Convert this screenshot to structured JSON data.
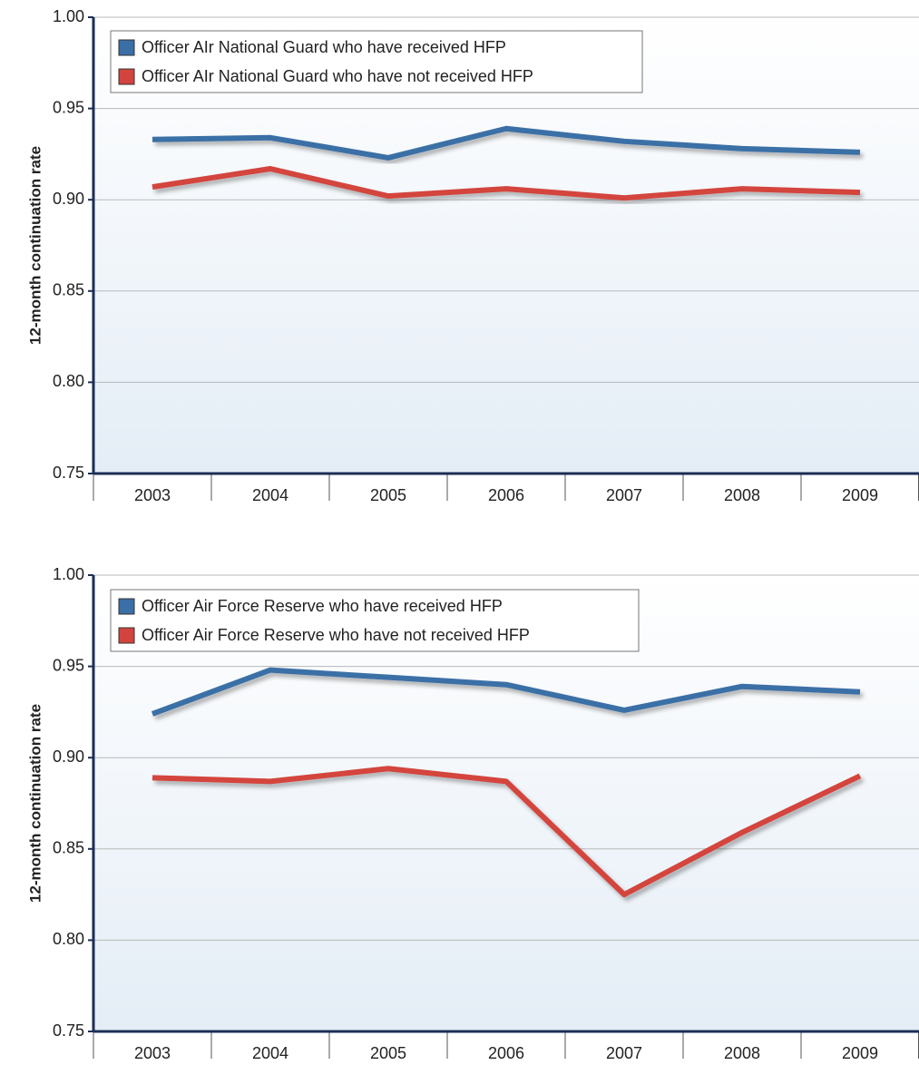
{
  "chart_data": [
    {
      "type": "line",
      "y_label": "12-month continuation rate",
      "categories": [
        "2003",
        "2004",
        "2005",
        "2006",
        "2007",
        "2008",
        "2009"
      ],
      "series": [
        {
          "name": "Officer AIr National Guard who have received HFP",
          "color": "#3b6fa6",
          "values": [
            0.933,
            0.934,
            0.923,
            0.939,
            0.932,
            0.928,
            0.926
          ]
        },
        {
          "name": "Officer AIr National Guard who have not received HFP",
          "color": "#d3443e",
          "values": [
            0.907,
            0.917,
            0.902,
            0.906,
            0.901,
            0.906,
            0.904
          ]
        }
      ],
      "ylim": [
        0.75,
        1.0
      ],
      "yticks": [
        {
          "value": 1.0,
          "label": "1.00"
        },
        0.95,
        {
          "value": 0.9,
          "label": "0.90"
        },
        0.85,
        {
          "value": 0.8,
          "label": "0.80"
        },
        0.75
      ],
      "grid": true,
      "legend": "top-left"
    },
    {
      "type": "line",
      "y_label": "12-month continuation rate",
      "categories": [
        "2003",
        "2004",
        "2005",
        "2006",
        "2007",
        "2008",
        "2009"
      ],
      "series": [
        {
          "name": "Officer Air Force Reserve who have received HFP",
          "color": "#3b6fa6",
          "values": [
            0.924,
            0.948,
            0.944,
            0.94,
            0.926,
            0.939,
            0.936
          ]
        },
        {
          "name": "Officer Air Force Reserve who have not received HFP",
          "color": "#d3443e",
          "values": [
            0.889,
            0.887,
            0.894,
            0.887,
            0.825,
            0.859,
            0.89
          ]
        }
      ],
      "ylim": [
        0.75,
        1.0
      ],
      "yticks": [
        {
          "value": 1.0,
          "label": "1.00"
        },
        0.95,
        {
          "value": 0.9,
          "label": "0.90"
        },
        0.85,
        {
          "value": 0.8,
          "label": "0.80"
        },
        0.75
      ],
      "grid": true,
      "legend": "top-left"
    }
  ]
}
